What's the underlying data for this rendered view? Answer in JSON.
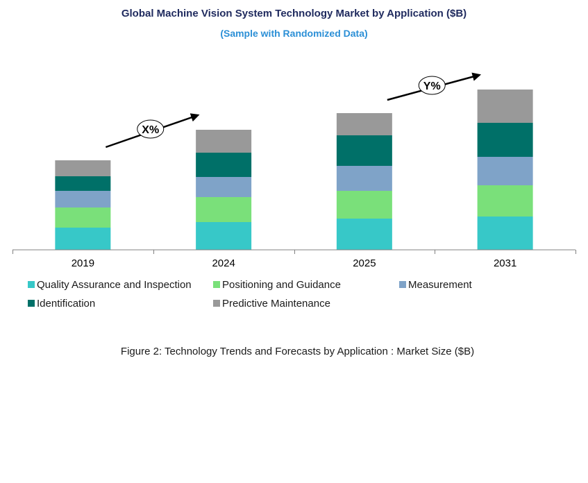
{
  "chart_data": {
    "type": "bar",
    "stacked": true,
    "title": "Global Machine Vision System Technology Market by Application ($B)",
    "subtitle": "(Sample with Randomized Data)",
    "categories": [
      "2019",
      "2024",
      "2025",
      "2031"
    ],
    "series": [
      {
        "name": "Quality Assurance and Inspection",
        "color": "#37c8c8",
        "values": [
          32,
          40,
          45,
          48
        ]
      },
      {
        "name": "Positioning and Guidance",
        "color": "#7ae07a",
        "values": [
          29,
          36,
          40,
          45
        ]
      },
      {
        "name": "Measurement",
        "color": "#7fa3c8",
        "values": [
          24,
          29,
          36,
          41
        ]
      },
      {
        "name": "Identification",
        "color": "#007068",
        "values": [
          21,
          35,
          44,
          49
        ]
      },
      {
        "name": "Predictive Maintenance",
        "color": "#999999",
        "values": [
          23,
          33,
          32,
          48
        ]
      }
    ],
    "ylim": [
      0,
      260
    ],
    "grid": false,
    "legend_position": "bottom-left",
    "annotations": [
      {
        "label": "X%",
        "from": "2019",
        "to": "2024"
      },
      {
        "label": "Y%",
        "from": "2025",
        "to": "2031"
      }
    ]
  },
  "caption": "Figure 2: Technology  Trends  and Forecasts by Application : Market Size ($B)"
}
